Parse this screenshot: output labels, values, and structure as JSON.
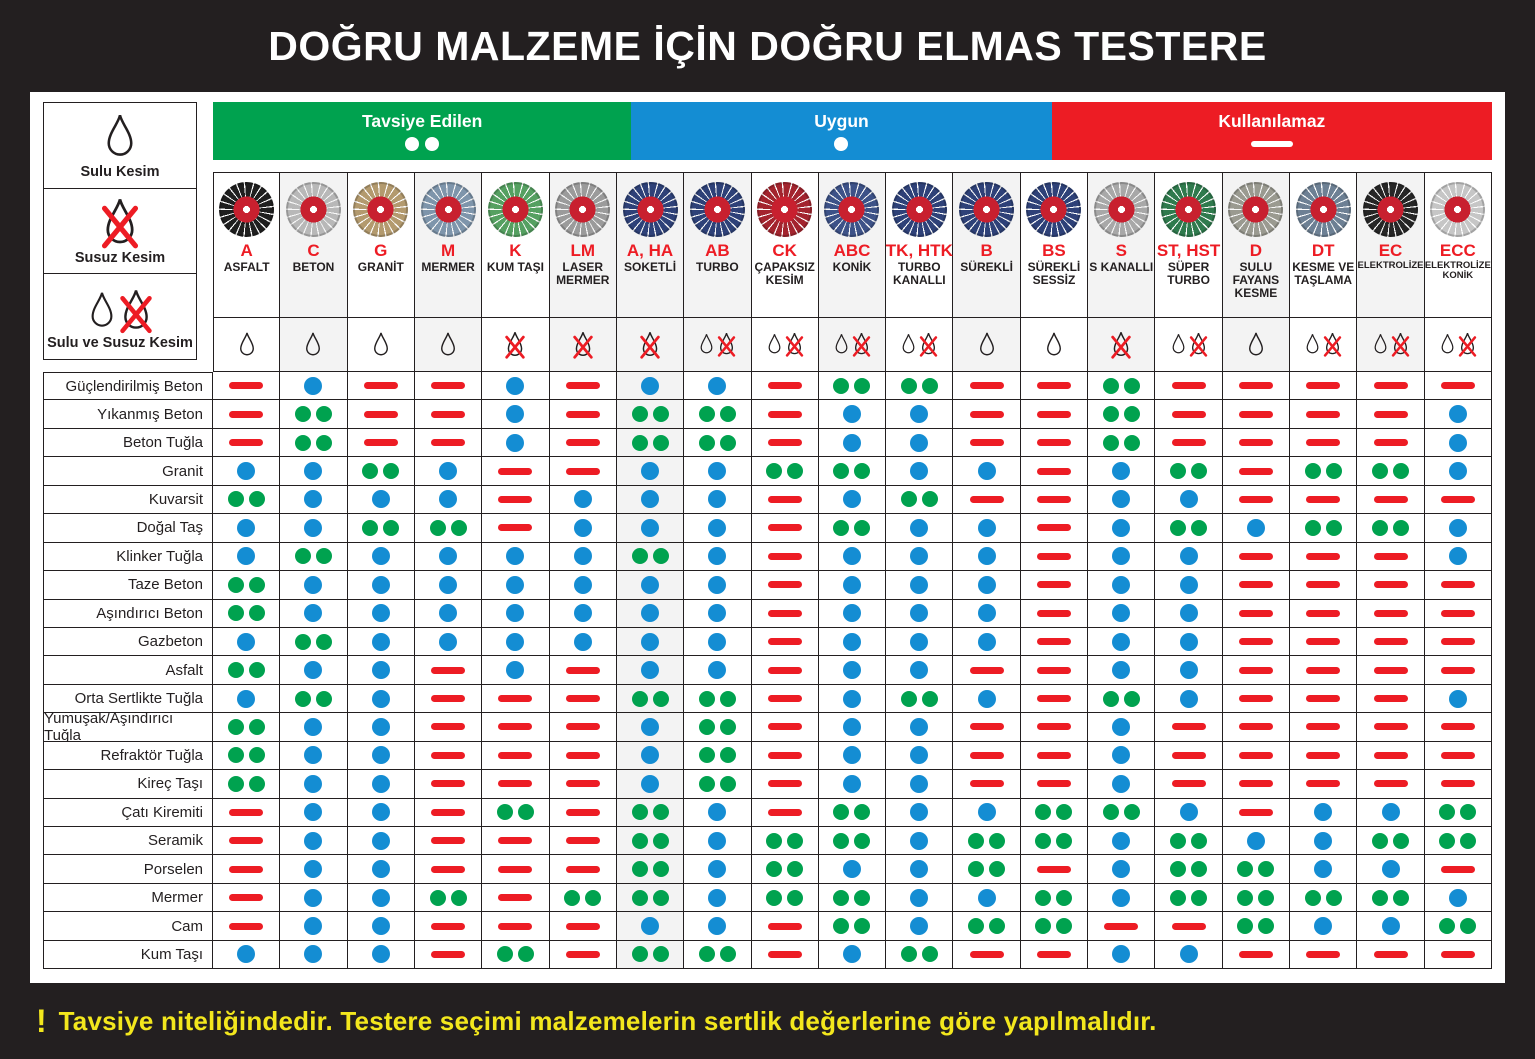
{
  "title": "DOĞRU MALZEME İÇİN DOĞRU ELMAS TESTERE",
  "footer": {
    "bang": "!",
    "note": "Tavsiye niteliğindedir. Testere seçimi malzemelerin sertlik değerlerine göre yapılmalıdır."
  },
  "colors": {
    "green": "#00a24f",
    "blue": "#148dd3",
    "red": "#ed1c24",
    "yellow": "#f3e71d",
    "ink": "#231f20"
  },
  "rating_legend": [
    {
      "key": "G",
      "label": "Tavsiye Edilen",
      "symbol": "double-dot",
      "color": "#00a24f"
    },
    {
      "key": "B",
      "label": "Uygun",
      "symbol": "single-dot",
      "color": "#148dd3"
    },
    {
      "key": "R",
      "label": "Kullanılamaz",
      "symbol": "dash",
      "color": "#ed1c24"
    }
  ],
  "cut_legend": [
    {
      "label": "Sulu Kesim",
      "icon": "water-drop"
    },
    {
      "label": "Susuz Kesim",
      "icon": "water-drop-crossed"
    },
    {
      "label": "Sulu ve Susuz Kesim",
      "icon": "water-drop-and-crossed"
    }
  ],
  "chart_data": {
    "type": "table",
    "value_legend": {
      "G": "Tavsiye Edilen (iki yeşil nokta)",
      "B": "Uygun (mavi nokta)",
      "R": "Kullanılamaz (kırmızı çizgi)"
    },
    "columns": [
      {
        "code": "A",
        "name": "ASFALT",
        "cut": "wet",
        "disc": "#1f1f1f"
      },
      {
        "code": "C",
        "name": "BETON",
        "cut": "wet",
        "disc": "#b8b8b8"
      },
      {
        "code": "G",
        "name": "GRANİT",
        "cut": "wet",
        "disc": "#b39a6e"
      },
      {
        "code": "M",
        "name": "MERMER",
        "cut": "wet",
        "disc": "#7e95ab"
      },
      {
        "code": "K",
        "name": "KUM TAŞI",
        "cut": "dry",
        "disc": "#55a061"
      },
      {
        "code": "LM",
        "name": "LASER MERMER",
        "cut": "dry",
        "disc": "#9b9b9b"
      },
      {
        "code": "A, HA",
        "name": "SOKETLİ",
        "cut": "dry",
        "disc": "#2e4178"
      },
      {
        "code": "AB",
        "name": "TURBO",
        "cut": "both",
        "disc": "#2e4178"
      },
      {
        "code": "CK",
        "name": "ÇAPAKSIZ KESİM",
        "cut": "both",
        "disc": "#a3242e"
      },
      {
        "code": "ABC",
        "name": "KONİK",
        "cut": "both",
        "disc": "#3d5288"
      },
      {
        "code": "TK, HTK",
        "name": "TURBO KANALLI",
        "cut": "both",
        "disc": "#2e4178"
      },
      {
        "code": "B",
        "name": "SÜREKLİ",
        "cut": "wet",
        "disc": "#2e4178"
      },
      {
        "code": "BS",
        "name": "SÜREKLİ SESSİZ",
        "cut": "wet",
        "disc": "#2e4178"
      },
      {
        "code": "S",
        "name": "S KANALLI",
        "cut": "dry",
        "disc": "#a8a8a8"
      },
      {
        "code": "ST, HST",
        "name": "SÜPER TURBO",
        "cut": "both",
        "disc": "#2f7a4d"
      },
      {
        "code": "D",
        "name": "SULU FAYANS KESME",
        "cut": "wet",
        "disc": "#9a9a90"
      },
      {
        "code": "DT",
        "name": "KESME VE TAŞLAMA",
        "cut": "both",
        "disc": "#6d8094"
      },
      {
        "code": "EC",
        "name": "ELEKTROLİZE",
        "cut": "both",
        "disc": "#262626"
      },
      {
        "code": "ECC",
        "name": "ELEKTROLİZE KONİK",
        "cut": "both",
        "disc": "#c6c6c6"
      }
    ],
    "rows": [
      {
        "label": "Güçlendirilmiş Beton",
        "cells": [
          "R",
          "B",
          "R",
          "R",
          "B",
          "R",
          "B",
          "B",
          "R",
          "G",
          "G",
          "R",
          "R",
          "G",
          "R",
          "R",
          "R",
          "R",
          "R"
        ]
      },
      {
        "label": "Yıkanmış Beton",
        "cells": [
          "R",
          "G",
          "R",
          "R",
          "B",
          "R",
          "G",
          "G",
          "R",
          "B",
          "B",
          "R",
          "R",
          "G",
          "R",
          "R",
          "R",
          "R",
          "B"
        ]
      },
      {
        "label": "Beton Tuğla",
        "cells": [
          "R",
          "G",
          "R",
          "R",
          "B",
          "R",
          "G",
          "G",
          "R",
          "B",
          "B",
          "R",
          "R",
          "G",
          "R",
          "R",
          "R",
          "R",
          "B"
        ]
      },
      {
        "label": "Granit",
        "cells": [
          "B",
          "B",
          "G",
          "B",
          "R",
          "R",
          "B",
          "B",
          "G",
          "G",
          "B",
          "B",
          "R",
          "B",
          "G",
          "R",
          "G",
          "G",
          "B"
        ]
      },
      {
        "label": "Kuvarsit",
        "cells": [
          "G",
          "B",
          "B",
          "B",
          "R",
          "B",
          "B",
          "B",
          "R",
          "B",
          "G",
          "R",
          "R",
          "B",
          "B",
          "R",
          "R",
          "R",
          "R"
        ]
      },
      {
        "label": "Doğal Taş",
        "cells": [
          "B",
          "B",
          "G",
          "G",
          "R",
          "B",
          "B",
          "B",
          "R",
          "G",
          "B",
          "B",
          "R",
          "B",
          "G",
          "B",
          "G",
          "G",
          "B"
        ]
      },
      {
        "label": "Klinker Tuğla",
        "cells": [
          "B",
          "G",
          "B",
          "B",
          "B",
          "B",
          "G",
          "B",
          "R",
          "B",
          "B",
          "B",
          "R",
          "B",
          "B",
          "R",
          "R",
          "R",
          "B"
        ]
      },
      {
        "label": "Taze Beton",
        "cells": [
          "G",
          "B",
          "B",
          "B",
          "B",
          "B",
          "B",
          "B",
          "R",
          "B",
          "B",
          "B",
          "R",
          "B",
          "B",
          "R",
          "R",
          "R",
          "R"
        ]
      },
      {
        "label": "Aşındırıcı Beton",
        "cells": [
          "G",
          "B",
          "B",
          "B",
          "B",
          "B",
          "B",
          "B",
          "R",
          "B",
          "B",
          "B",
          "R",
          "B",
          "B",
          "R",
          "R",
          "R",
          "R"
        ]
      },
      {
        "label": "Gazbeton",
        "cells": [
          "B",
          "G",
          "B",
          "B",
          "B",
          "B",
          "B",
          "B",
          "R",
          "B",
          "B",
          "B",
          "R",
          "B",
          "B",
          "R",
          "R",
          "R",
          "R"
        ]
      },
      {
        "label": "Asfalt",
        "cells": [
          "G",
          "B",
          "B",
          "R",
          "B",
          "R",
          "B",
          "B",
          "R",
          "B",
          "B",
          "R",
          "R",
          "B",
          "B",
          "R",
          "R",
          "R",
          "R"
        ]
      },
      {
        "label": "Orta Sertlikte Tuğla",
        "cells": [
          "B",
          "G",
          "B",
          "R",
          "R",
          "R",
          "G",
          "G",
          "R",
          "B",
          "G",
          "B",
          "R",
          "G",
          "B",
          "R",
          "R",
          "R",
          "B"
        ]
      },
      {
        "label": "Yumuşak/Aşındırıcı Tuğla",
        "cells": [
          "G",
          "B",
          "B",
          "R",
          "R",
          "R",
          "B",
          "G",
          "R",
          "B",
          "B",
          "R",
          "R",
          "B",
          "R",
          "R",
          "R",
          "R",
          "R"
        ]
      },
      {
        "label": "Refraktör Tuğla",
        "cells": [
          "G",
          "B",
          "B",
          "R",
          "R",
          "R",
          "B",
          "G",
          "R",
          "B",
          "B",
          "R",
          "R",
          "B",
          "R",
          "R",
          "R",
          "R",
          "R"
        ]
      },
      {
        "label": "Kireç Taşı",
        "cells": [
          "G",
          "B",
          "B",
          "R",
          "R",
          "R",
          "B",
          "G",
          "R",
          "B",
          "B",
          "R",
          "R",
          "B",
          "R",
          "R",
          "R",
          "R",
          "R"
        ]
      },
      {
        "label": "Çatı Kiremiti",
        "cells": [
          "R",
          "B",
          "B",
          "R",
          "G",
          "R",
          "G",
          "B",
          "R",
          "G",
          "B",
          "B",
          "G",
          "G",
          "B",
          "R",
          "B",
          "B",
          "G"
        ]
      },
      {
        "label": "Seramik",
        "cells": [
          "R",
          "B",
          "B",
          "R",
          "R",
          "R",
          "G",
          "B",
          "G",
          "G",
          "B",
          "G",
          "G",
          "B",
          "G",
          "B",
          "B",
          "G",
          "G"
        ]
      },
      {
        "label": "Porselen",
        "cells": [
          "R",
          "B",
          "B",
          "R",
          "R",
          "R",
          "G",
          "B",
          "G",
          "B",
          "B",
          "G",
          "R",
          "B",
          "G",
          "G",
          "B",
          "B",
          "R"
        ]
      },
      {
        "label": "Mermer",
        "cells": [
          "R",
          "B",
          "B",
          "G",
          "R",
          "G",
          "G",
          "B",
          "G",
          "G",
          "B",
          "B",
          "G",
          "B",
          "G",
          "G",
          "G",
          "G",
          "B"
        ]
      },
      {
        "label": "Cam",
        "cells": [
          "R",
          "B",
          "B",
          "R",
          "R",
          "R",
          "B",
          "B",
          "R",
          "G",
          "B",
          "G",
          "G",
          "R",
          "R",
          "G",
          "B",
          "B",
          "G"
        ]
      },
      {
        "label": "Kum Taşı",
        "cells": [
          "B",
          "B",
          "B",
          "R",
          "G",
          "R",
          "G",
          "G",
          "R",
          "B",
          "G",
          "R",
          "R",
          "B",
          "B",
          "R",
          "R",
          "R",
          "R"
        ]
      }
    ]
  }
}
